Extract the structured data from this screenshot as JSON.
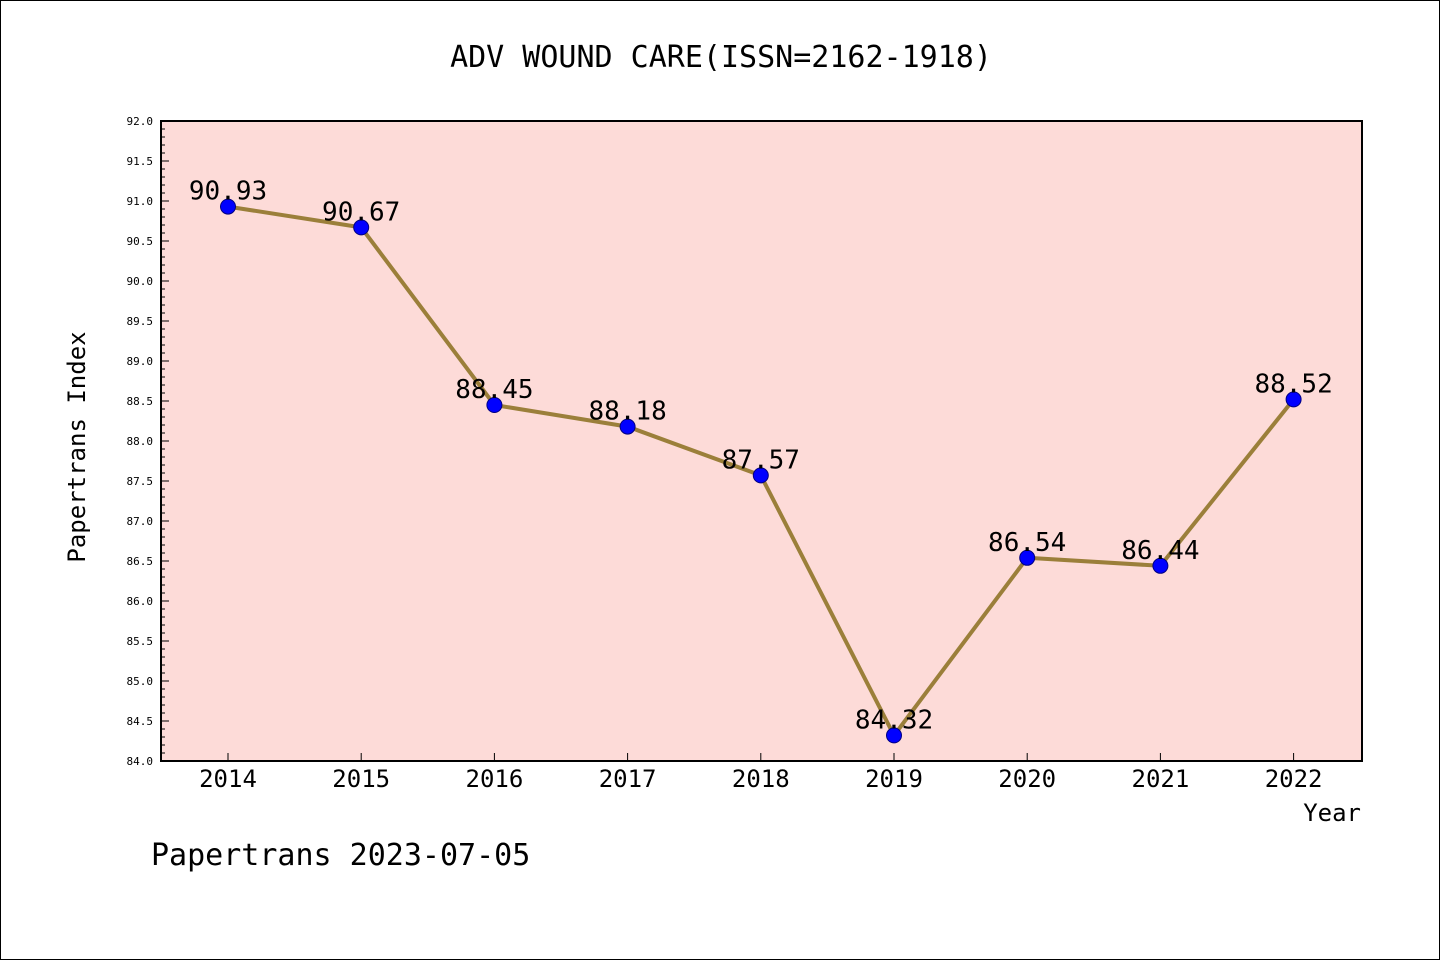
{
  "chart_data": {
    "type": "line",
    "title": "ADV WOUND CARE(ISSN=2162-1918)",
    "xlabel": "Year",
    "ylabel": "Papertrans Index",
    "categories": [
      "2014",
      "2015",
      "2016",
      "2017",
      "2018",
      "2019",
      "2020",
      "2021",
      "2022"
    ],
    "series": [
      {
        "values": [
          90.93,
          90.67,
          88.45,
          88.18,
          87.57,
          84.32,
          86.54,
          86.44,
          88.52
        ]
      }
    ],
    "data_labels": [
      "90.93",
      "90.67",
      "88.45",
      "88.18",
      "87.57",
      "84.32",
      "86.54",
      "86.44",
      "88.52"
    ],
    "ylim": [
      84.0,
      92.0
    ],
    "yticks": [
      "84.0",
      "84.5",
      "85.0",
      "85.5",
      "86.0",
      "86.5",
      "87.0",
      "87.5",
      "88.0",
      "88.5",
      "89.0",
      "89.5",
      "90.0",
      "90.5",
      "91.0",
      "91.5",
      "92.0"
    ],
    "grid": false,
    "legend": "none",
    "colors": {
      "plot_background": "#fddbd8",
      "line": "#9b7f3a",
      "marker_fill": "#0000ff",
      "marker_edge": "#000080"
    }
  },
  "footer": "Papertrans 2023-07-05"
}
